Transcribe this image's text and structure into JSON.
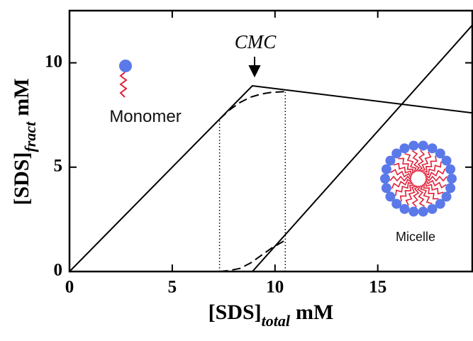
{
  "chart_data": {
    "type": "line",
    "xlabel": {
      "main": "[SDS]",
      "sub": "total",
      "unit": "mM"
    },
    "ylabel": {
      "main": "[SDS]",
      "sub": "fract",
      "unit": "mM"
    },
    "xlim": [
      0,
      19.6
    ],
    "ylim": [
      0,
      12.5
    ],
    "xticks": [
      0,
      5,
      10,
      15
    ],
    "yticks": [
      0,
      5,
      10
    ],
    "series": [
      {
        "style": "solid",
        "color": "#000000",
        "x": [
          0,
          8.9,
          19.6
        ],
        "values": [
          0,
          8.9,
          7.6
        ]
      },
      {
        "style": "solid",
        "color": "#000000",
        "x": [
          8.9,
          19.6
        ],
        "values": [
          0,
          11.8
        ]
      },
      {
        "style": "dashed",
        "color": "#000000",
        "x": [
          7.3,
          7.8,
          8.3,
          8.8,
          9.3,
          9.8,
          10.5
        ],
        "values": [
          7.3,
          7.75,
          8.1,
          8.35,
          8.5,
          8.58,
          8.62
        ]
      },
      {
        "style": "dashed",
        "color": "#000000",
        "x": [
          7.3,
          7.8,
          8.3,
          8.8,
          9.3,
          9.8,
          10.5
        ],
        "values": [
          0,
          0.05,
          0.15,
          0.4,
          0.75,
          1.1,
          1.5
        ]
      },
      {
        "style": "dotted",
        "color": "#000000",
        "x": [
          7.3,
          7.3
        ],
        "values": [
          0,
          7.3
        ]
      },
      {
        "style": "dotted",
        "color": "#000000",
        "x": [
          10.5,
          10.5
        ],
        "values": [
          0,
          8.6
        ]
      }
    ],
    "annotations": [
      "CMC",
      "Monomer",
      "Micelle"
    ]
  }
}
